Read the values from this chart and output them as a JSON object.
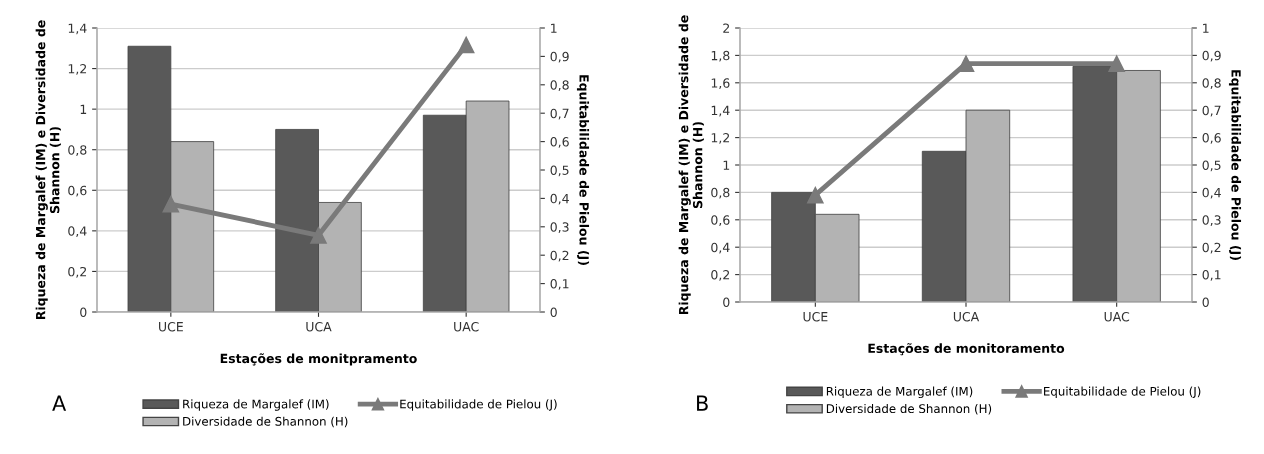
{
  "chart_data": [
    {
      "type": "bar",
      "categories": [
        "UCE",
        "UCA",
        "UAC"
      ],
      "xlabel": "Estações de monitpramento",
      "ylabel": "Riqueza de Margalef (IM) e Diversidade de Shannon (H)",
      "y2label": "Equitabilidade de Pielou (J)",
      "series": [
        {
          "name": "Riqueza de Margalef (IM)",
          "color": "#595959",
          "values": [
            1.31,
            0.9,
            0.97
          ]
        },
        {
          "name": "Diversidade de Shannon (H)",
          "color": "#b3b3b3",
          "values": [
            0.84,
            0.54,
            1.04
          ]
        },
        {
          "name": "Equitabilidade de Pielou (J)",
          "type": "line",
          "axis": "y2",
          "color": "#7a7a7a",
          "marker": "triangle",
          "values": [
            0.38,
            0.27,
            0.94
          ]
        }
      ],
      "ylim": [
        0,
        1.4
      ],
      "yticks": [
        0,
        {
          "value": 0.2,
          "label": "0,2"
        },
        {
          "value": 0.4,
          "label": "0,4"
        },
        {
          "value": 0.6,
          "label": "0,6"
        },
        {
          "value": 0.8,
          "label": "0,8"
        },
        1,
        {
          "value": 1.2,
          "label": "1,2"
        },
        {
          "value": 1.4,
          "label": "1,4"
        }
      ],
      "y2lim": [
        0,
        1
      ],
      "y2ticks": [
        0,
        {
          "value": 0.1,
          "label": "0,1"
        },
        {
          "value": 0.2,
          "label": "0,2"
        },
        {
          "value": 0.3,
          "label": "0,3"
        },
        {
          "value": 0.4,
          "label": "0,4"
        },
        {
          "value": 0.5,
          "label": "0,5"
        },
        {
          "value": 0.6,
          "label": "0,6"
        },
        {
          "value": 0.7,
          "label": "0,7"
        },
        {
          "value": 0.8,
          "label": "0,8"
        },
        {
          "value": 0.9,
          "label": "0,9"
        },
        1
      ],
      "grid": "y",
      "legend": "bottom",
      "annotations": [
        "A"
      ]
    },
    {
      "type": "bar",
      "categories": [
        "UCE",
        "UCA",
        "UAC"
      ],
      "xlabel": "Estações de monitoramento",
      "ylabel": "Riqueza de Margalef (IM) e Diversidade de Shannon (H)",
      "y2label": "Equitabilidade de Pielou (J)",
      "series": [
        {
          "name": "Riqueza de Margalef (IM)",
          "color": "#595959",
          "values": [
            0.8,
            1.1,
            1.72
          ]
        },
        {
          "name": "Diversidade de Shannon (H)",
          "color": "#b3b3b3",
          "values": [
            0.64,
            1.4,
            1.69
          ]
        },
        {
          "name": "Equitabilidade de Pielou (J)",
          "type": "line",
          "axis": "y2",
          "color": "#7a7a7a",
          "marker": "triangle",
          "values": [
            0.39,
            0.87,
            0.87
          ]
        }
      ],
      "ylim": [
        0,
        2
      ],
      "yticks": [
        0,
        {
          "value": 0.2,
          "label": "0,2"
        },
        {
          "value": 0.4,
          "label": "0,4"
        },
        {
          "value": 0.6,
          "label": "0,6"
        },
        {
          "value": 0.8,
          "label": "0,8"
        },
        1,
        {
          "value": 1.2,
          "label": "1,2"
        },
        {
          "value": 1.4,
          "label": "1,4"
        },
        {
          "value": 1.6,
          "label": "1,6"
        },
        {
          "value": 1.8,
          "label": "1,8"
        },
        2
      ],
      "y2lim": [
        0,
        1
      ],
      "y2ticks": [
        0,
        {
          "value": 0.1,
          "label": "0,1"
        },
        {
          "value": 0.2,
          "label": "0,2"
        },
        {
          "value": 0.3,
          "label": "0,3"
        },
        {
          "value": 0.4,
          "label": "0,4"
        },
        {
          "value": 0.5,
          "label": "0,5"
        },
        {
          "value": 0.6,
          "label": "0,6"
        },
        {
          "value": 0.7,
          "label": "0,7"
        },
        {
          "value": 0.8,
          "label": "0,8"
        },
        {
          "value": 0.9,
          "label": "0,9"
        },
        1
      ],
      "grid": "y",
      "legend": "bottom",
      "annotations": [
        "B"
      ]
    }
  ]
}
